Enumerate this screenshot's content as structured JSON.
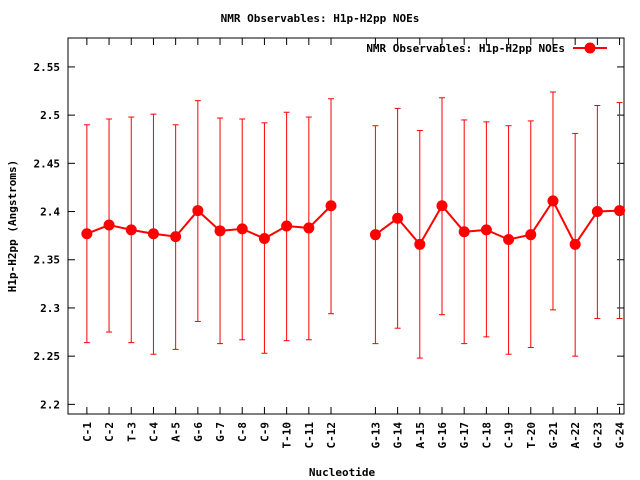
{
  "chart_data": {
    "type": "line",
    "title": "NMR Observables: H1p-H2pp NOEs",
    "xlabel": "Nucleotide",
    "ylabel": "H1p-H2pp (Angstroms)",
    "ylim": [
      2.19,
      2.58
    ],
    "yticks": [
      "2.2",
      "2.25",
      "2.3",
      "2.35",
      "2.4",
      "2.45",
      "2.5",
      "2.55"
    ],
    "grid": false,
    "legend_position": "top-right",
    "color": "#ff0000",
    "series": [
      {
        "name": "NMR Observables: H1p-H2pp NOEs",
        "points": [
          {
            "label": "C-1",
            "x": 1,
            "y": 2.377,
            "err_low": 2.264,
            "err_high": 2.49
          },
          {
            "label": "C-2",
            "x": 2,
            "y": 2.386,
            "err_low": 2.275,
            "err_high": 2.496
          },
          {
            "label": "T-3",
            "x": 3,
            "y": 2.381,
            "err_low": 2.264,
            "err_high": 2.498
          },
          {
            "label": "C-4",
            "x": 4,
            "y": 2.377,
            "err_low": 2.252,
            "err_high": 2.501
          },
          {
            "label": "A-5",
            "x": 5,
            "y": 2.374,
            "err_low": 2.257,
            "err_high": 2.49
          },
          {
            "label": "G-6",
            "x": 6,
            "y": 2.401,
            "err_low": 2.286,
            "err_high": 2.515
          },
          {
            "label": "G-7",
            "x": 7,
            "y": 2.38,
            "err_low": 2.263,
            "err_high": 2.497
          },
          {
            "label": "C-8",
            "x": 8,
            "y": 2.382,
            "err_low": 2.267,
            "err_high": 2.496
          },
          {
            "label": "C-9",
            "x": 9,
            "y": 2.372,
            "err_low": 2.253,
            "err_high": 2.492
          },
          {
            "label": "T-10",
            "x": 10,
            "y": 2.385,
            "err_low": 2.266,
            "err_high": 2.503
          },
          {
            "label": "C-11",
            "x": 11,
            "y": 2.383,
            "err_low": 2.267,
            "err_high": 2.498
          },
          {
            "label": "C-12",
            "x": 12,
            "y": 2.406,
            "err_low": 2.294,
            "err_high": 2.517
          },
          {
            "label": "G-13",
            "x": 14,
            "y": 2.376,
            "err_low": 2.263,
            "err_high": 2.489
          },
          {
            "label": "G-14",
            "x": 15,
            "y": 2.393,
            "err_low": 2.279,
            "err_high": 2.507
          },
          {
            "label": "A-15",
            "x": 16,
            "y": 2.366,
            "err_low": 2.248,
            "err_high": 2.484
          },
          {
            "label": "G-16",
            "x": 17,
            "y": 2.406,
            "err_low": 2.293,
            "err_high": 2.518
          },
          {
            "label": "G-17",
            "x": 18,
            "y": 2.379,
            "err_low": 2.263,
            "err_high": 2.495
          },
          {
            "label": "C-18",
            "x": 19,
            "y": 2.381,
            "err_low": 2.27,
            "err_high": 2.493
          },
          {
            "label": "C-19",
            "x": 20,
            "y": 2.371,
            "err_low": 2.252,
            "err_high": 2.489
          },
          {
            "label": "T-20",
            "x": 21,
            "y": 2.376,
            "err_low": 2.259,
            "err_high": 2.494
          },
          {
            "label": "G-21",
            "x": 22,
            "y": 2.411,
            "err_low": 2.298,
            "err_high": 2.524
          },
          {
            "label": "A-22",
            "x": 23,
            "y": 2.366,
            "err_low": 2.25,
            "err_high": 2.481
          },
          {
            "label": "G-23",
            "x": 24,
            "y": 2.4,
            "err_low": 2.289,
            "err_high": 2.51
          },
          {
            "label": "G-24",
            "x": 25,
            "y": 2.401,
            "err_low": 2.289,
            "err_high": 2.513
          }
        ]
      }
    ]
  }
}
